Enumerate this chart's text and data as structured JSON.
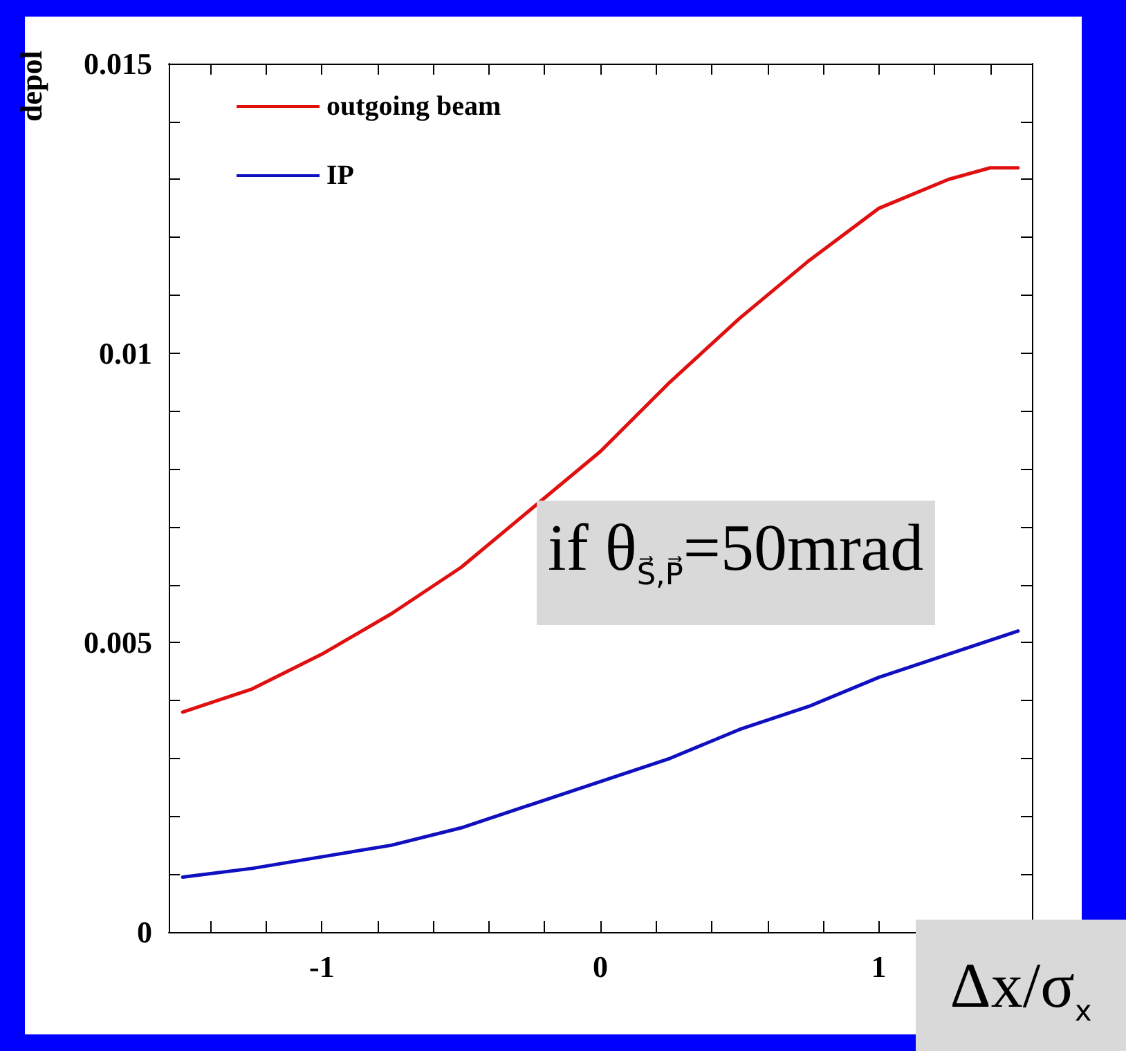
{
  "chart_data": {
    "type": "line",
    "ylabel": "depol",
    "xlabel": "Δx/σ$_{x}$",
    "annotations": [
      "if θ$_{S⃗,P⃗}$=50mrad"
    ],
    "legend": "top left",
    "grid": false,
    "marker": "none",
    "line_style": "solid",
    "xlim": [
      -1.55,
      1.55
    ],
    "xticks": [
      {
        "value": -1.4,
        "label": null
      },
      {
        "value": -1.2,
        "label": null
      },
      -1,
      {
        "value": -0.8,
        "label": null
      },
      {
        "value": -0.6,
        "label": null
      },
      {
        "value": -0.4,
        "label": null
      },
      {
        "value": -0.2,
        "label": null
      },
      0,
      {
        "value": 0.2,
        "label": null
      },
      {
        "value": 0.4,
        "label": null
      },
      {
        "value": 0.6,
        "label": null
      },
      {
        "value": 0.8,
        "label": null
      },
      1,
      {
        "value": 1.2,
        "label": null
      },
      {
        "value": 1.4,
        "label": null
      }
    ],
    "ylim": [
      0,
      0.015
    ],
    "yticks": [
      0,
      {
        "value": 0.001,
        "label": null
      },
      {
        "value": 0.002,
        "label": null
      },
      {
        "value": 0.003,
        "label": null
      },
      {
        "value": 0.004,
        "label": null
      },
      0.005,
      {
        "value": 0.006,
        "label": null
      },
      {
        "value": 0.007,
        "label": null
      },
      {
        "value": 0.008,
        "label": null
      },
      {
        "value": 0.009,
        "label": null
      },
      0.01,
      {
        "value": 0.011,
        "label": null
      },
      {
        "value": 0.012,
        "label": null
      },
      {
        "value": 0.013,
        "label": null
      },
      {
        "value": 0.014,
        "label": null
      },
      0.015
    ],
    "series": [
      {
        "name": "outgoing beam",
        "color": "#e01010",
        "x": [
          -1.5,
          -1.25,
          -1,
          -0.75,
          -0.5,
          -0.25,
          0,
          0.25,
          0.5,
          0.75,
          1,
          1.25,
          1.4,
          1.5
        ],
        "values": [
          0.0038,
          0.0042,
          0.0048,
          0.0055,
          0.0063,
          0.0073,
          0.0083,
          0.0095,
          0.0106,
          0.0116,
          0.0125,
          0.013,
          0.0132,
          0.0132
        ]
      },
      {
        "name": "IP",
        "color": "#1010c0",
        "x": [
          -1.5,
          -1.25,
          -1,
          -0.75,
          -0.5,
          -0.25,
          0,
          0.25,
          0.5,
          0.75,
          1,
          1.25,
          1.5
        ],
        "values": [
          0.00095,
          0.0011,
          0.0013,
          0.0015,
          0.0018,
          0.0022,
          0.0026,
          0.003,
          0.0035,
          0.0039,
          0.0044,
          0.0048,
          0.0052
        ]
      }
    ]
  }
}
